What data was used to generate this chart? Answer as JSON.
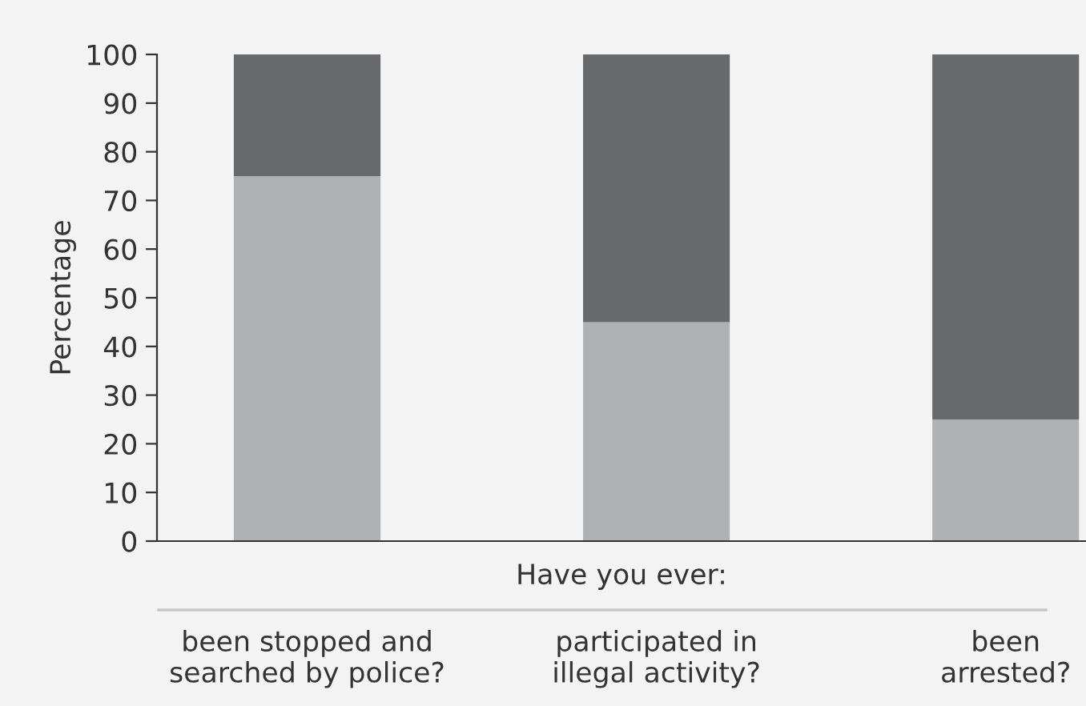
{
  "chart_data": {
    "type": "bar",
    "stacked": true,
    "ylabel": "Percentage",
    "xlabel": "Have you ever:",
    "categories": [
      "been stopped and\nsearched by police?",
      "participated in\nillegal activity?",
      "been\narrested?"
    ],
    "series": [
      {
        "color": "#b0b1b4",
        "values": [
          75,
          45,
          25
        ]
      },
      {
        "color": "#68696b",
        "values": [
          25,
          55,
          75
        ]
      }
    ],
    "ylim": [
      0,
      100
    ],
    "yticks": [
      0,
      10,
      20,
      30,
      40,
      50,
      60,
      70,
      80,
      90,
      100
    ],
    "grid": false,
    "legend": false
  }
}
